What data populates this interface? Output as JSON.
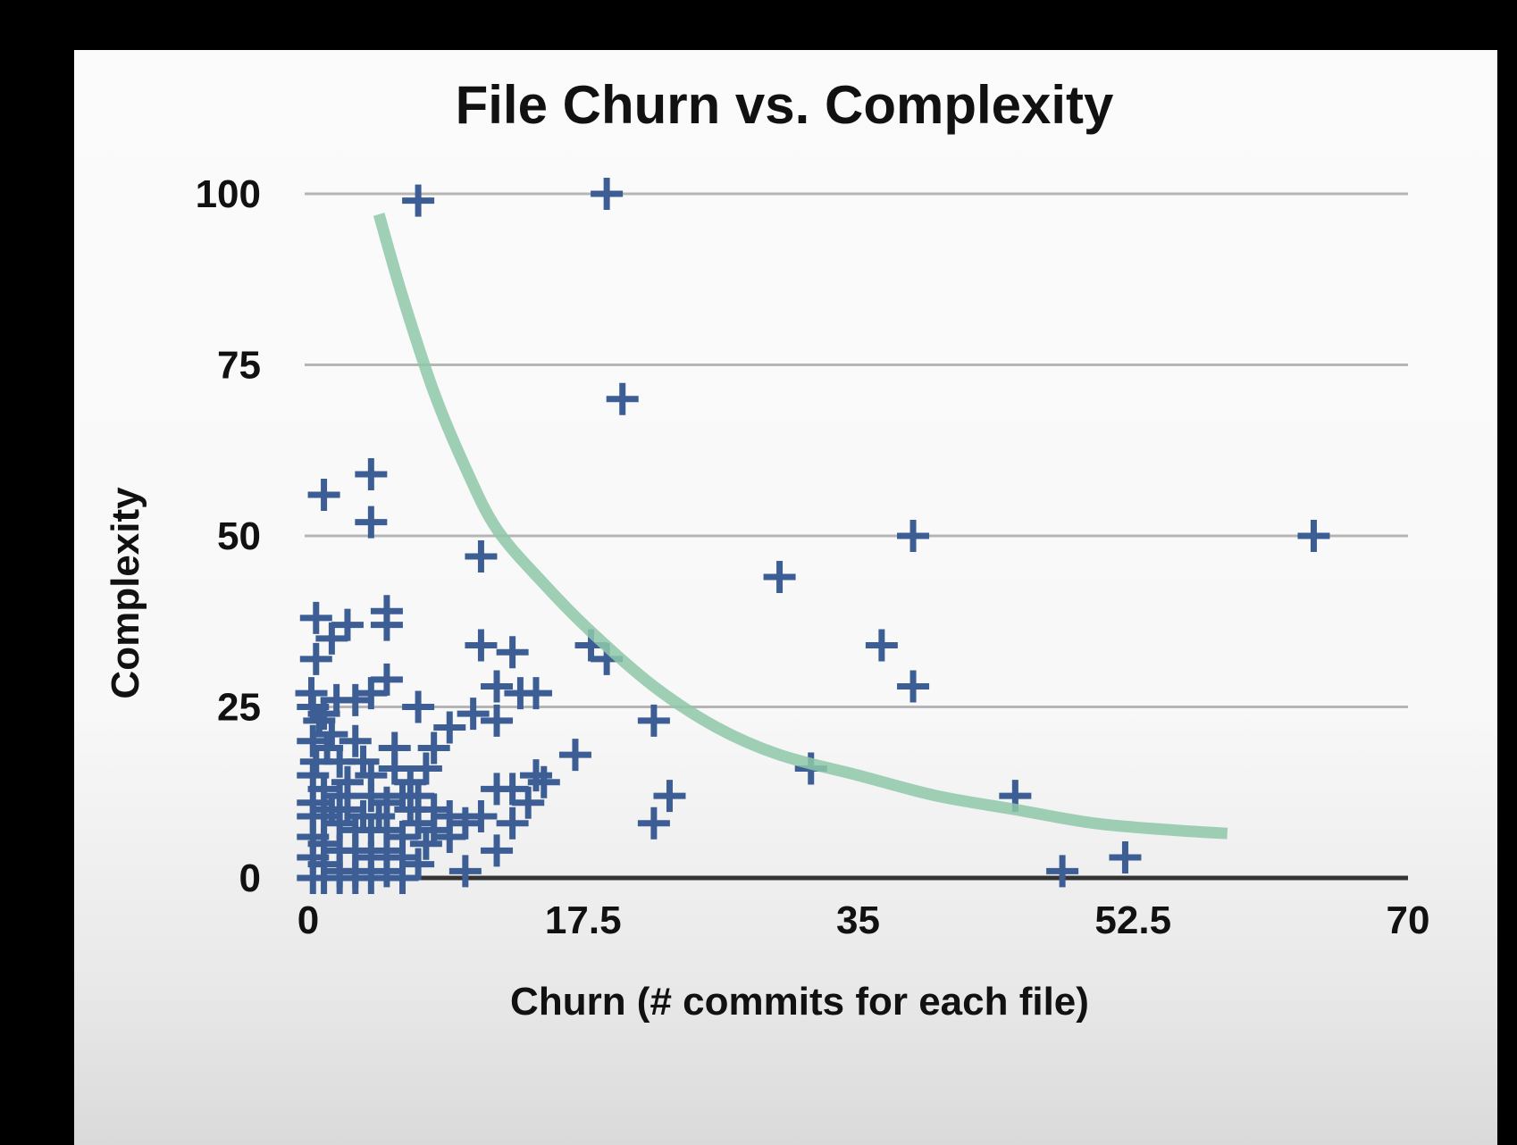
{
  "chart_data": {
    "type": "scatter",
    "title": "File Churn vs. Complexity",
    "xlabel": "Churn (# commits for each file)",
    "ylabel": "Complexity",
    "xlim": [
      0,
      70
    ],
    "ylim": [
      0,
      100
    ],
    "x_ticks": [
      "0",
      "17.5",
      "35",
      "52.5",
      "70"
    ],
    "y_ticks": [
      "0",
      "25",
      "50",
      "75",
      "100"
    ],
    "grid": true,
    "marker": "plus",
    "colors": {
      "points": "#3d5e95",
      "trend": "#8ec8a9",
      "grid": "#b5b5b5",
      "axis": "#333333"
    },
    "series": [
      {
        "points": [
          [
            7,
            99
          ],
          [
            19,
            100
          ],
          [
            20,
            70
          ],
          [
            64,
            50
          ],
          [
            38.5,
            50
          ],
          [
            30,
            44
          ],
          [
            36.5,
            34
          ],
          [
            38.5,
            28
          ],
          [
            11,
            47
          ],
          [
            1,
            56
          ],
          [
            4,
            59
          ],
          [
            4,
            52
          ],
          [
            18,
            34
          ],
          [
            19,
            32
          ],
          [
            22,
            23
          ],
          [
            23,
            12
          ],
          [
            22,
            8
          ],
          [
            17,
            18
          ],
          [
            32,
            16
          ],
          [
            45,
            12
          ],
          [
            48,
            1
          ],
          [
            52,
            3
          ],
          [
            0.5,
            38
          ],
          [
            1.5,
            35
          ],
          [
            0.5,
            32
          ],
          [
            2.5,
            37
          ],
          [
            5,
            39
          ],
          [
            5,
            37
          ],
          [
            5,
            29
          ],
          [
            11,
            34
          ],
          [
            13,
            33
          ],
          [
            12,
            28
          ],
          [
            13.5,
            27
          ],
          [
            14.5,
            27
          ],
          [
            12,
            23
          ],
          [
            10.5,
            24
          ],
          [
            4,
            27
          ],
          [
            3,
            26
          ],
          [
            7,
            25
          ],
          [
            9,
            22
          ],
          [
            8,
            19
          ],
          [
            7.5,
            16
          ],
          [
            14.5,
            15
          ],
          [
            15,
            14
          ],
          [
            13,
            13
          ],
          [
            12,
            13
          ],
          [
            14,
            11
          ],
          [
            11,
            9
          ],
          [
            13,
            8
          ],
          [
            12,
            4
          ],
          [
            10,
            1
          ],
          [
            0.3,
            25
          ],
          [
            0.7,
            23
          ],
          [
            1,
            24
          ],
          [
            0.3,
            20
          ],
          [
            1.2,
            19
          ],
          [
            2,
            17
          ],
          [
            3.5,
            17
          ],
          [
            5.5,
            16
          ],
          [
            6.5,
            14
          ],
          [
            0.3,
            15
          ],
          [
            1,
            13
          ],
          [
            2,
            12
          ],
          [
            4,
            12
          ],
          [
            5,
            11
          ],
          [
            6,
            12
          ],
          [
            7,
            12
          ],
          [
            8,
            10
          ],
          [
            9,
            9
          ],
          [
            10,
            8
          ],
          [
            0.3,
            9
          ],
          [
            1,
            9
          ],
          [
            2,
            8
          ],
          [
            3,
            7
          ],
          [
            4,
            7
          ],
          [
            5,
            7
          ],
          [
            6,
            6
          ],
          [
            7,
            8
          ],
          [
            8,
            7
          ],
          [
            9,
            6
          ],
          [
            0.3,
            6
          ],
          [
            1,
            5
          ],
          [
            2,
            4
          ],
          [
            3,
            4
          ],
          [
            4,
            3
          ],
          [
            5,
            4
          ],
          [
            6,
            3
          ],
          [
            7,
            2
          ],
          [
            0.3,
            3
          ],
          [
            1,
            2
          ],
          [
            2,
            1
          ],
          [
            3,
            1
          ],
          [
            4,
            0
          ],
          [
            5,
            1
          ],
          [
            6,
            0
          ],
          [
            0.3,
            0
          ],
          [
            1,
            0
          ],
          [
            2,
            0
          ],
          [
            3,
            0
          ],
          [
            0.3,
            11
          ],
          [
            1.5,
            10
          ],
          [
            2.5,
            10
          ],
          [
            3.5,
            9
          ],
          [
            4.5,
            9
          ],
          [
            0.5,
            17
          ],
          [
            1.5,
            21
          ],
          [
            2.5,
            14
          ],
          [
            0.2,
            27
          ],
          [
            1.8,
            26
          ],
          [
            3,
            20
          ],
          [
            4,
            15
          ],
          [
            5.5,
            19
          ],
          [
            6.5,
            10
          ],
          [
            7.5,
            5
          ]
        ]
      }
    ],
    "trend_line": {
      "type": "curve",
      "points": [
        [
          4.5,
          97
        ],
        [
          6,
          85
        ],
        [
          8,
          71
        ],
        [
          10,
          60
        ],
        [
          12,
          51
        ],
        [
          15,
          43
        ],
        [
          18,
          36
        ],
        [
          22,
          28
        ],
        [
          26,
          22
        ],
        [
          30,
          18
        ],
        [
          35,
          15
        ],
        [
          40,
          12
        ],
        [
          45,
          10
        ],
        [
          50,
          8
        ],
        [
          55,
          7
        ],
        [
          58.5,
          6.5
        ]
      ]
    }
  }
}
